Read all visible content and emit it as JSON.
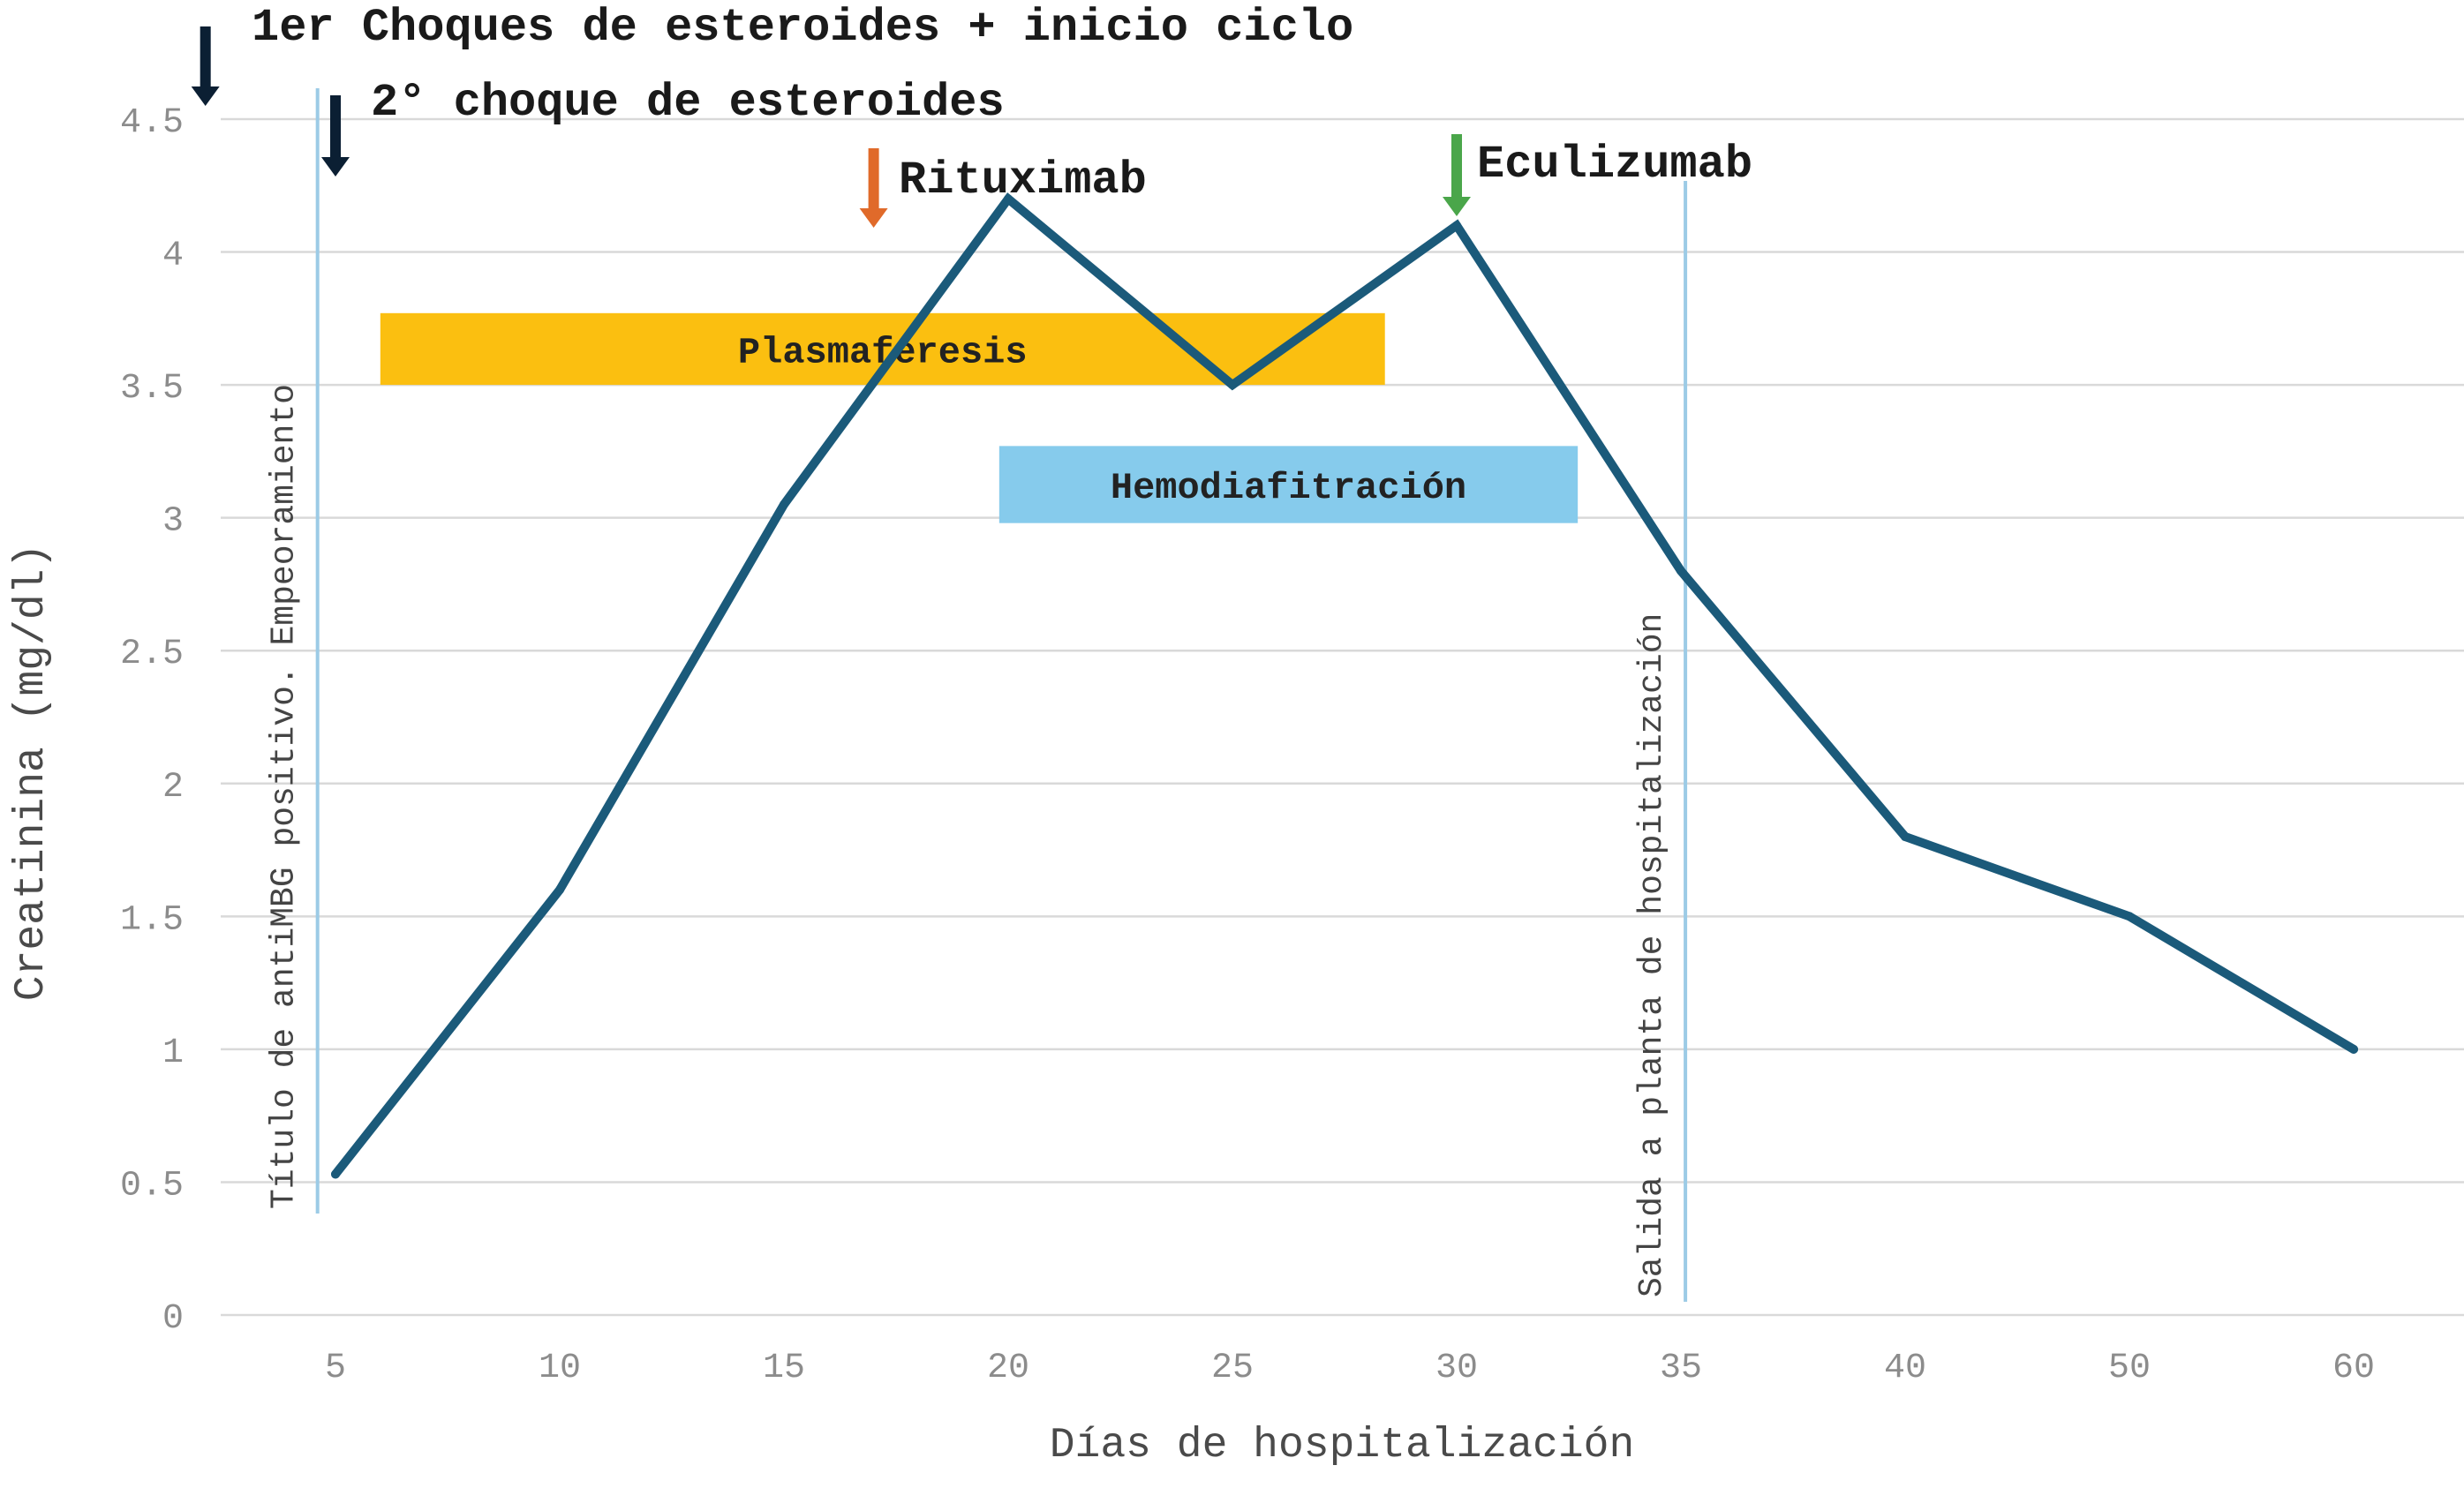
{
  "chart_data": {
    "type": "line",
    "xlabel": "Días de hospitalización",
    "ylabel": "Creatinina (mg/dl)",
    "categories": [
      "5",
      "10",
      "15",
      "20",
      "25",
      "30",
      "35",
      "40",
      "50",
      "60"
    ],
    "yticks": [
      "0",
      "0.5",
      "1",
      "1.5",
      "2",
      "2.5",
      "3",
      "3.5",
      "4",
      "4.5"
    ],
    "ylim": [
      0,
      4.5
    ],
    "grid": "horizontal",
    "series": [
      {
        "values": [
          0.53,
          1.6,
          3.05,
          4.2,
          3.5,
          4.1,
          2.8,
          1.8,
          1.5,
          1.0
        ],
        "color": "#1b5a7a"
      }
    ],
    "vlines": [
      {
        "x_pos": 4.6,
        "label": "Título de antiMBG positivo. Empeoramiento",
        "color": "#9ccbe6"
      },
      {
        "x_pos": 35.1,
        "label": "Salida a planta de hospitalización",
        "color": "#9ccbe6"
      }
    ],
    "bars": [
      {
        "label": "Plasmaféresis",
        "x_start": 6,
        "x_end": 28.4,
        "y_top": 3.77,
        "y_bottom": 3.5,
        "color": "#fbbf10"
      },
      {
        "label": "Hemodiafitración",
        "x_start": 19.8,
        "x_end": 32.7,
        "y_top": 3.27,
        "y_bottom": 2.98,
        "color": "#86cbec"
      }
    ],
    "annotations": [
      {
        "text": "1er Choques de esteroides + inicio ciclo",
        "x": 2.1,
        "color": "#0b1f33"
      },
      {
        "text": "2° choque de esteroides",
        "x": 5.0,
        "color": "#0b1f33"
      },
      {
        "text": "Rituximab",
        "x": 17.0,
        "color": "#e06a2a"
      },
      {
        "text": "Eculizumab",
        "x": 30.0,
        "color": "#4aa64a"
      }
    ]
  }
}
